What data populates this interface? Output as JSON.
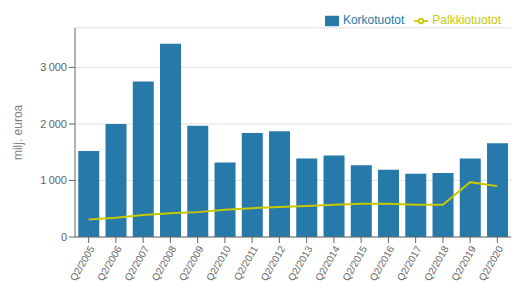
{
  "chart_data": {
    "type": "bar",
    "categories": [
      "Q2/2005",
      "Q2/2006",
      "Q2/2007",
      "Q2/2008",
      "Q2/2009",
      "Q2/2010",
      "Q2/2011",
      "Q2/2012",
      "Q2/2013",
      "Q2/2014",
      "Q2/2015",
      "Q2/2016",
      "Q2/2017",
      "Q2/2018",
      "Q2/2019",
      "Q2/2020"
    ],
    "series": [
      {
        "name": "Korkotuotot",
        "type": "bar",
        "color": "#2779AA",
        "values": [
          1520,
          2000,
          2750,
          3420,
          1970,
          1320,
          1840,
          1870,
          1390,
          1440,
          1270,
          1190,
          1120,
          1130,
          1390,
          1660
        ]
      },
      {
        "name": "Palkkiotuotot",
        "type": "line",
        "color": "#C8C800",
        "values": [
          310,
          340,
          390,
          420,
          440,
          480,
          510,
          530,
          550,
          570,
          590,
          590,
          570,
          570,
          970,
          900
        ]
      }
    ],
    "ylabel": "milj. euroa",
    "ylim": [
      0,
      3700
    ],
    "yticks": [
      0,
      {
        "value": 1000,
        "label": "1 000"
      },
      {
        "value": 2000,
        "label": "2 000"
      },
      {
        "value": 3000,
        "label": "3 000"
      }
    ],
    "grid": true,
    "legend": "upper right"
  }
}
